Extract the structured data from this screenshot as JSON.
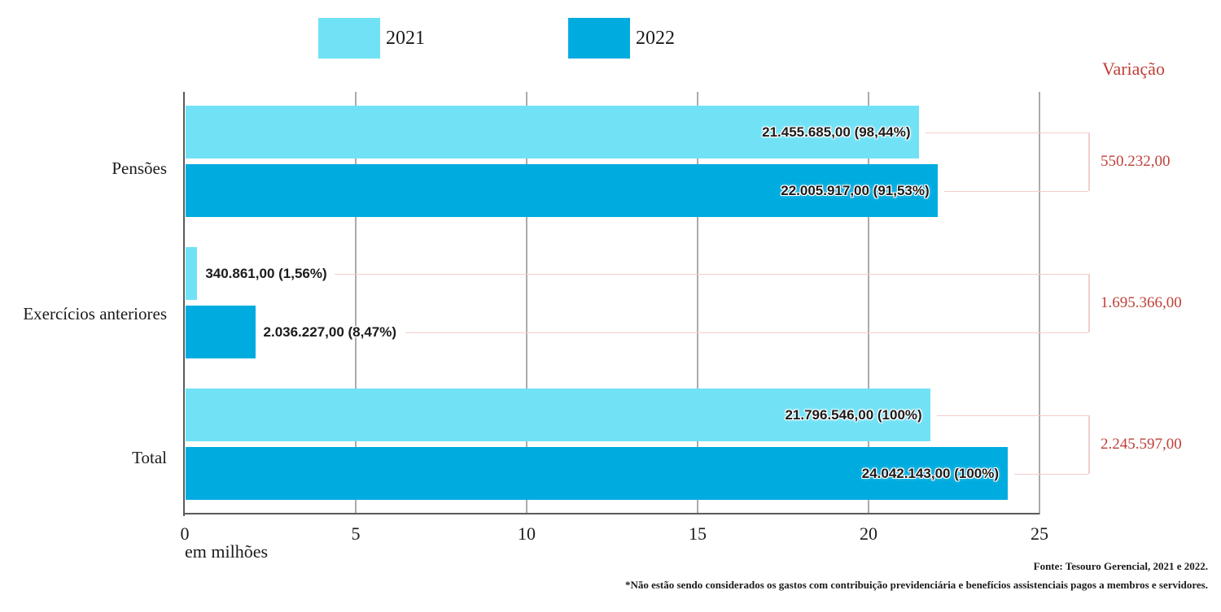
{
  "legend": {
    "items": [
      {
        "label": "2021",
        "color": "#71E2F6"
      },
      {
        "label": "2022",
        "color": "#00ACDF"
      }
    ]
  },
  "variation": {
    "header": "Variação"
  },
  "chart_data": {
    "type": "bar",
    "orientation": "horizontal",
    "xlabel": "em milhões",
    "xlim": [
      0,
      25
    ],
    "x_ticks": [
      0,
      5,
      10,
      15,
      20,
      25
    ],
    "grid": "vertical",
    "legend_position": "top",
    "series": [
      "2021",
      "2022"
    ],
    "categories": [
      "Pensões",
      "Exercícios anteriores",
      "Total"
    ],
    "groups": [
      {
        "category": "Pensões",
        "bars": [
          {
            "series": "2021",
            "value_millions": 21.455685,
            "label": "21.455.685,00 (98,44%)"
          },
          {
            "series": "2022",
            "value_millions": 22.005917,
            "label": "22.005.917,00 (91,53%)"
          }
        ],
        "variation": "550.232,00"
      },
      {
        "category": "Exercícios anteriores",
        "bars": [
          {
            "series": "2021",
            "value_millions": 0.340861,
            "label": "340.861,00 (1,56%)"
          },
          {
            "series": "2022",
            "value_millions": 2.036227,
            "label": "2.036.227,00 (8,47%)"
          }
        ],
        "variation": "1.695.366,00"
      },
      {
        "category": "Total",
        "bars": [
          {
            "series": "2021",
            "value_millions": 21.796546,
            "label": "21.796.546,00 (100%)"
          },
          {
            "series": "2022",
            "value_millions": 24.042143,
            "label": "24.042.143,00 (100%)"
          }
        ],
        "variation": "2.245.597,00"
      }
    ]
  },
  "footer": {
    "source": "Fonte: Tesouro Gerencial, 2021 e 2022.",
    "note": "*Não estão sendo considerados os gastos com contribuição previdenciária e benefícios assistenciais pagos a membros e servidores."
  },
  "colors": {
    "series_2021": "#71E2F6",
    "series_2022": "#00ACDF",
    "variation_text": "#BE4038",
    "bracket_line": "#F2CECB",
    "gridline": "#ABABAB",
    "axis": "#5A5A5B"
  }
}
